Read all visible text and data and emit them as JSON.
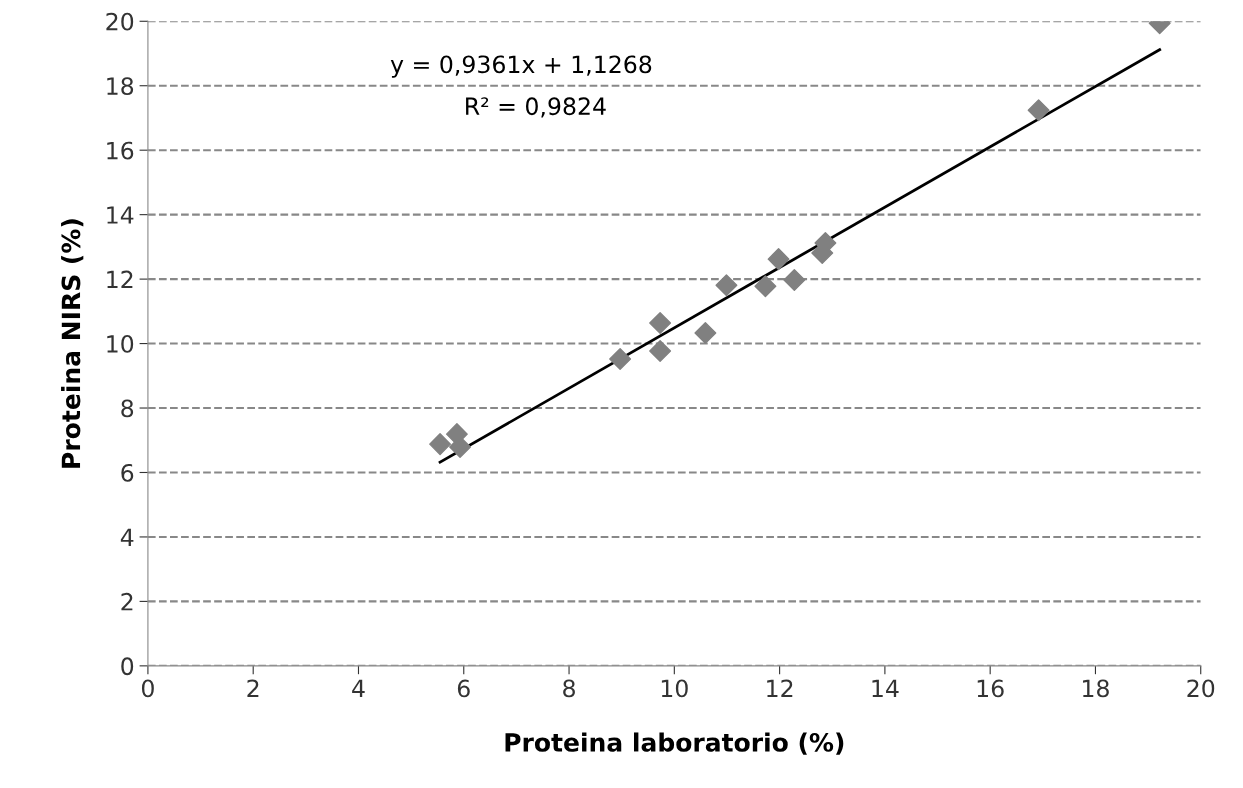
{
  "chart_data": {
    "type": "scatter",
    "xlabel": "Proteina laboratorio (%)",
    "ylabel": "Proteina NIRS (%)",
    "xlim": [
      0,
      20
    ],
    "ylim": [
      0,
      20
    ],
    "xticks": [
      0,
      2,
      4,
      6,
      8,
      10,
      12,
      14,
      16,
      18,
      20
    ],
    "yticks": [
      0,
      2,
      4,
      6,
      8,
      10,
      12,
      14,
      16,
      18,
      20
    ],
    "grid": "y",
    "legend": false,
    "marker": "diamond",
    "series": [
      {
        "color": "#808080",
        "x": [
          5.55,
          5.87,
          5.93,
          8.97,
          9.73,
          9.73,
          10.59,
          10.99,
          11.73,
          11.98,
          12.28,
          12.81,
          12.87,
          16.92,
          19.22
        ],
        "values": [
          6.88,
          7.19,
          6.79,
          9.52,
          10.64,
          9.77,
          10.33,
          11.81,
          11.78,
          12.62,
          11.97,
          12.81,
          13.12,
          17.24,
          19.94
        ]
      },
      {
        "type": "line",
        "color": "#000000",
        "marker": "none",
        "line_style": "solid",
        "x": [
          5.55,
          19.22
        ],
        "values": [
          6.32,
          19.12
        ]
      }
    ],
    "annotations": [
      "y = 0,9361x + 1,1268",
      "R² = 0,9824"
    ]
  }
}
